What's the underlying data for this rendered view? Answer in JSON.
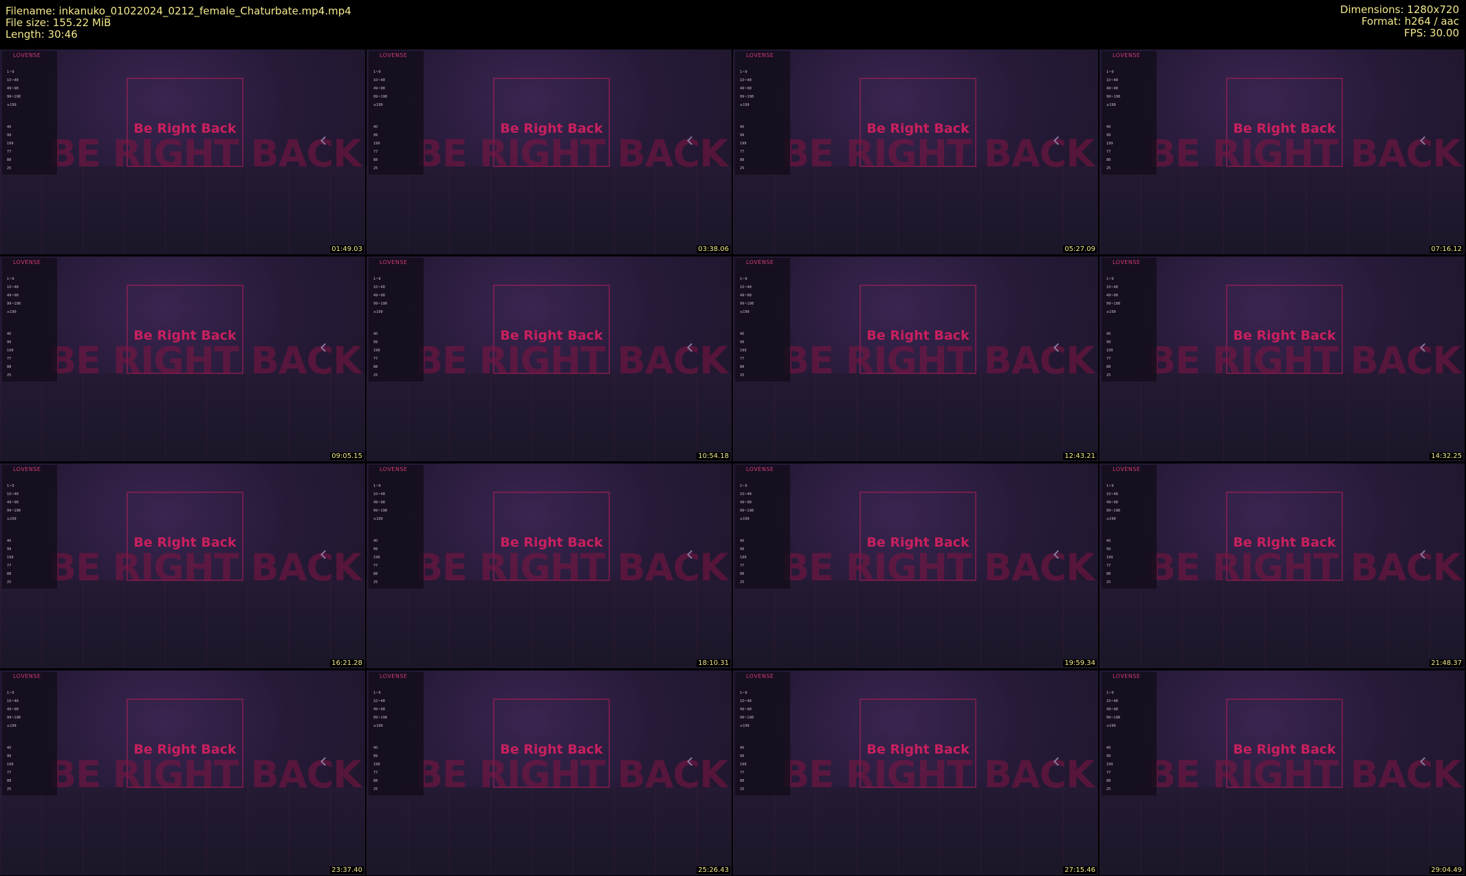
{
  "header": {
    "filename": "Filename: inkanuko_01022024_0212_female_Chaturbate.mp4.mp4",
    "file_size": "File size: 155.22 MiB",
    "length": "Length: 30:46",
    "dimensions": "Dimensions: 1280x720",
    "format": "Format: h264 / aac",
    "fps": "FPS: 30.00"
  },
  "thumbnail_content": {
    "brand": "LOVENSE",
    "title": "Be Right Back",
    "background_text": "BE RIGHT BACK",
    "levels": [
      "1~9",
      "10~48",
      "49~98",
      "99~198",
      "≥199"
    ],
    "patterns": [
      "40",
      "99",
      "199",
      "77",
      "88",
      "25"
    ]
  },
  "thumbnails": [
    {
      "timestamp": "01:49.03"
    },
    {
      "timestamp": "03:38.06"
    },
    {
      "timestamp": "05:27.09"
    },
    {
      "timestamp": "07:16.12"
    },
    {
      "timestamp": "09:05.15"
    },
    {
      "timestamp": "10:54.18"
    },
    {
      "timestamp": "12:43.21"
    },
    {
      "timestamp": "14:32.25"
    },
    {
      "timestamp": "16:21.28"
    },
    {
      "timestamp": "18:10.31"
    },
    {
      "timestamp": "19:59.34"
    },
    {
      "timestamp": "21:48.37"
    },
    {
      "timestamp": "23:37.40"
    },
    {
      "timestamp": "25:26.43"
    },
    {
      "timestamp": "27:15.46"
    },
    {
      "timestamp": "29:04.49"
    }
  ]
}
